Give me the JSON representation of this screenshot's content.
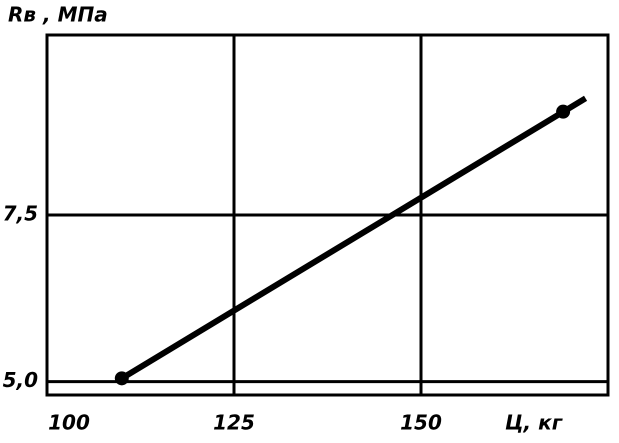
{
  "chart_data": {
    "type": "line",
    "y_label": "Rв , МПа",
    "x_label": "Ц, кг",
    "xlim": [
      100,
      175
    ],
    "ylim": [
      4.8,
      10.2
    ],
    "xticks": [
      100,
      125,
      150
    ],
    "yticks": [
      {
        "value": 5.0,
        "label": "5,0"
      },
      {
        "value": 7.5,
        "label": "7,5"
      }
    ],
    "grid": true,
    "color": "#000000",
    "line": {
      "x": [
        110,
        172
      ],
      "values": [
        5.05,
        9.25
      ]
    },
    "points": {
      "x": [
        110,
        169
      ],
      "values": [
        5.05,
        9.05
      ]
    }
  }
}
